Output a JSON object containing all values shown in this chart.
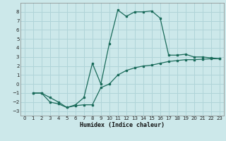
{
  "xlabel": "Humidex (Indice chaleur)",
  "bg_color": "#cce8ea",
  "grid_color": "#b0d4d8",
  "line_color": "#1a6b5a",
  "xlim": [
    -0.5,
    23.5
  ],
  "ylim": [
    -3.5,
    9.0
  ],
  "xticks": [
    0,
    1,
    2,
    3,
    4,
    5,
    6,
    7,
    8,
    9,
    10,
    11,
    12,
    13,
    14,
    15,
    16,
    17,
    18,
    19,
    20,
    21,
    22,
    23
  ],
  "yticks": [
    -3,
    -2,
    -1,
    0,
    1,
    2,
    3,
    4,
    5,
    6,
    7,
    8
  ],
  "curve1_x": [
    1,
    2,
    3,
    4,
    5,
    6,
    7,
    8,
    9,
    10,
    11,
    12,
    13,
    14,
    15,
    16,
    17,
    18,
    19,
    20,
    21,
    22,
    23
  ],
  "curve1_y": [
    -1.0,
    -1.0,
    -2.0,
    -2.2,
    -2.6,
    -2.4,
    -2.3,
    -2.3,
    -0.4,
    0.0,
    1.0,
    1.5,
    1.8,
    2.0,
    2.1,
    2.3,
    2.5,
    2.6,
    2.7,
    2.7,
    2.75,
    2.8,
    2.8
  ],
  "curve2_x": [
    1,
    2,
    3,
    4,
    5,
    6,
    7,
    8,
    9,
    10,
    11,
    12,
    13,
    14,
    15,
    16,
    17,
    18,
    19,
    20,
    21,
    22,
    23
  ],
  "curve2_y": [
    -1.0,
    -1.0,
    -1.5,
    -2.0,
    -2.6,
    -2.3,
    -1.5,
    2.3,
    0.0,
    4.5,
    8.2,
    7.5,
    8.0,
    8.0,
    8.1,
    7.3,
    3.2,
    3.2,
    3.3,
    3.0,
    3.0,
    2.9,
    2.8
  ]
}
